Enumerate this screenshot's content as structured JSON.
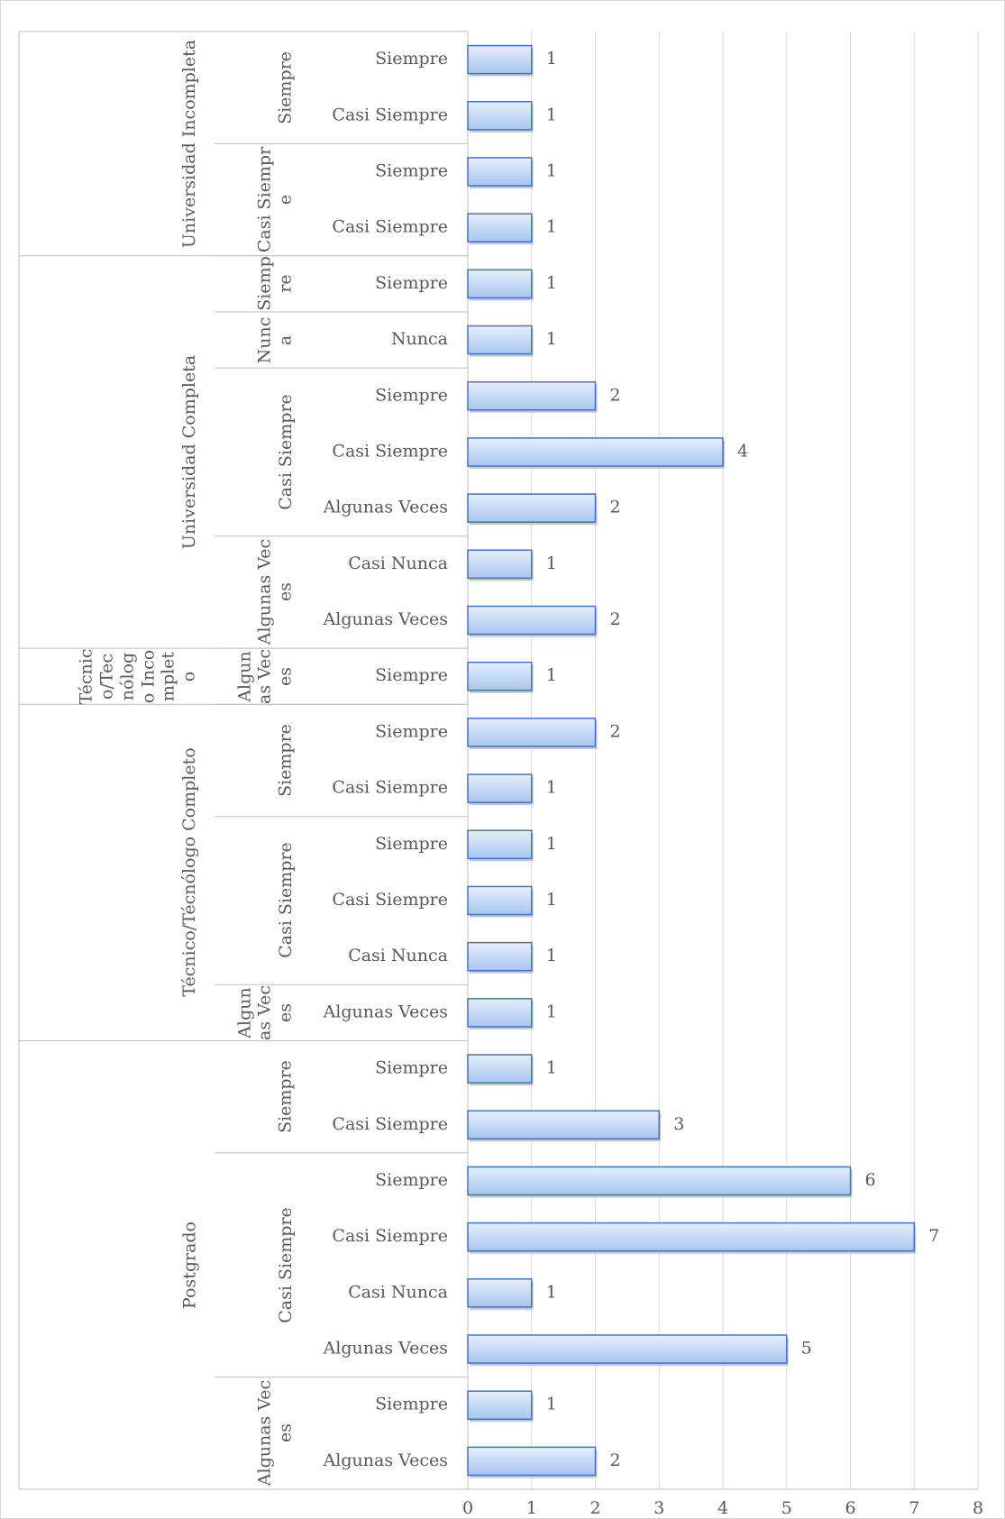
{
  "chart_data": {
    "type": "bar",
    "orientation": "horizontal",
    "color": "#4472c4",
    "grid": true,
    "xlim": [
      0,
      8
    ],
    "xticks": [
      0,
      1,
      2,
      3,
      4,
      5,
      6,
      7,
      8
    ],
    "groups": [
      {
        "name": "Universidad Incompleta",
        "subgroups": [
          {
            "name": "Siempre",
            "categories": [
              "Siempre",
              "Casi Siempre"
            ],
            "values": [
              1,
              1
            ]
          },
          {
            "name": "Casi Siempre",
            "categories": [
              "Siempre",
              "Casi Siempre"
            ],
            "values": [
              1,
              1
            ]
          }
        ]
      },
      {
        "name": "Universidad Completa",
        "subgroups": [
          {
            "name": "Siempre",
            "categories": [
              "Siempre"
            ],
            "values": [
              1
            ]
          },
          {
            "name": "Nunca",
            "categories": [
              "Nunca"
            ],
            "values": [
              1
            ]
          },
          {
            "name": "Casi Siempre",
            "categories": [
              "Siempre",
              "Casi Siempre",
              "Algunas Veces"
            ],
            "values": [
              2,
              4,
              2
            ]
          },
          {
            "name": "Algunas Veces",
            "categories": [
              "Casi Nunca",
              "Algunas Veces"
            ],
            "values": [
              1,
              2
            ]
          }
        ]
      },
      {
        "name": "Técnico/Tecnólogo Incompleto",
        "subgroups": [
          {
            "name": "Algunas Veces",
            "categories": [
              "Siempre"
            ],
            "values": [
              1
            ]
          }
        ]
      },
      {
        "name": "Técnico/Técnólogo Completo",
        "subgroups": [
          {
            "name": "Siempre",
            "categories": [
              "Siempre",
              "Casi Siempre"
            ],
            "values": [
              2,
              1
            ]
          },
          {
            "name": "Casi Siempre",
            "categories": [
              "Siempre",
              "Casi Siempre",
              "Casi Nunca"
            ],
            "values": [
              1,
              1,
              1
            ]
          },
          {
            "name": "Algunas Veces",
            "categories": [
              "Algunas Veces"
            ],
            "values": [
              1
            ]
          }
        ]
      },
      {
        "name": "Postgrado",
        "subgroups": [
          {
            "name": "Siempre",
            "categories": [
              "Siempre",
              "Casi Siempre"
            ],
            "values": [
              1,
              3
            ]
          },
          {
            "name": "Casi Siempre",
            "categories": [
              "Siempre",
              "Casi Siempre",
              "Casi Nunca",
              "Algunas Veces"
            ],
            "values": [
              6,
              7,
              1,
              5
            ]
          },
          {
            "name": "Algunas Veces",
            "categories": [
              "Siempre",
              "Algunas Veces"
            ],
            "values": [
              1,
              2
            ]
          }
        ]
      }
    ]
  }
}
